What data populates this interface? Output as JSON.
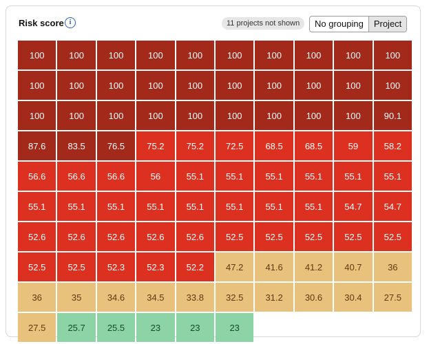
{
  "header": {
    "title": "Risk score",
    "badge": "11 projects not shown",
    "buttons": [
      "No grouping",
      "Project"
    ],
    "selected": 1
  },
  "cells": [
    {
      "value": 100,
      "color": "#a3291b",
      "text_color": "#ffffff"
    },
    {
      "value": 100,
      "color": "#a3291b",
      "text_color": "#ffffff"
    },
    {
      "value": 100,
      "color": "#a3291b",
      "text_color": "#ffffff"
    },
    {
      "value": 100,
      "color": "#a3291b",
      "text_color": "#ffffff"
    },
    {
      "value": 100,
      "color": "#a3291b",
      "text_color": "#ffffff"
    },
    {
      "value": 100,
      "color": "#a3291b",
      "text_color": "#ffffff"
    },
    {
      "value": 100,
      "color": "#a3291b",
      "text_color": "#ffffff"
    },
    {
      "value": 100,
      "color": "#a3291b",
      "text_color": "#ffffff"
    },
    {
      "value": 100,
      "color": "#a3291b",
      "text_color": "#ffffff"
    },
    {
      "value": 100,
      "color": "#a3291b",
      "text_color": "#ffffff"
    },
    {
      "value": 100,
      "color": "#a3291b",
      "text_color": "#ffffff"
    },
    {
      "value": 100,
      "color": "#a3291b",
      "text_color": "#ffffff"
    },
    {
      "value": 100,
      "color": "#a3291b",
      "text_color": "#ffffff"
    },
    {
      "value": 100,
      "color": "#a3291b",
      "text_color": "#ffffff"
    },
    {
      "value": 100,
      "color": "#a3291b",
      "text_color": "#ffffff"
    },
    {
      "value": 100,
      "color": "#a3291b",
      "text_color": "#ffffff"
    },
    {
      "value": 100,
      "color": "#a3291b",
      "text_color": "#ffffff"
    },
    {
      "value": 100,
      "color": "#a3291b",
      "text_color": "#ffffff"
    },
    {
      "value": 100,
      "color": "#a3291b",
      "text_color": "#ffffff"
    },
    {
      "value": 100,
      "color": "#a3291b",
      "text_color": "#ffffff"
    },
    {
      "value": 100,
      "color": "#a3291b",
      "text_color": "#ffffff"
    },
    {
      "value": 100,
      "color": "#a3291b",
      "text_color": "#ffffff"
    },
    {
      "value": 100,
      "color": "#a3291b",
      "text_color": "#ffffff"
    },
    {
      "value": 100,
      "color": "#a3291b",
      "text_color": "#ffffff"
    },
    {
      "value": 100,
      "color": "#a3291b",
      "text_color": "#ffffff"
    },
    {
      "value": 100,
      "color": "#a3291b",
      "text_color": "#ffffff"
    },
    {
      "value": 100,
      "color": "#a3291b",
      "text_color": "#ffffff"
    },
    {
      "value": 100,
      "color": "#a3291b",
      "text_color": "#ffffff"
    },
    {
      "value": 100,
      "color": "#a3291b",
      "text_color": "#ffffff"
    },
    {
      "value": 90.1,
      "color": "#a3291b",
      "text_color": "#ffffff"
    },
    {
      "value": 87.6,
      "color": "#a3291b",
      "text_color": "#ffffff"
    },
    {
      "value": 83.5,
      "color": "#a3291b",
      "text_color": "#ffffff"
    },
    {
      "value": 76.5,
      "color": "#a3291b",
      "text_color": "#ffffff"
    },
    {
      "value": 75.2,
      "color": "#dc3120",
      "text_color": "#ffffff"
    },
    {
      "value": 75.2,
      "color": "#dc3120",
      "text_color": "#ffffff"
    },
    {
      "value": 72.5,
      "color": "#dc3120",
      "text_color": "#ffffff"
    },
    {
      "value": 68.5,
      "color": "#dc3120",
      "text_color": "#ffffff"
    },
    {
      "value": 68.5,
      "color": "#dc3120",
      "text_color": "#ffffff"
    },
    {
      "value": 59,
      "color": "#dc3120",
      "text_color": "#ffffff"
    },
    {
      "value": 58.2,
      "color": "#dc3120",
      "text_color": "#ffffff"
    },
    {
      "value": 56.6,
      "color": "#dc3120",
      "text_color": "#ffffff"
    },
    {
      "value": 56.6,
      "color": "#dc3120",
      "text_color": "#ffffff"
    },
    {
      "value": 56.6,
      "color": "#dc3120",
      "text_color": "#ffffff"
    },
    {
      "value": 56,
      "color": "#dc3120",
      "text_color": "#ffffff"
    },
    {
      "value": 55.1,
      "color": "#dc3120",
      "text_color": "#ffffff"
    },
    {
      "value": 55.1,
      "color": "#dc3120",
      "text_color": "#ffffff"
    },
    {
      "value": 55.1,
      "color": "#dc3120",
      "text_color": "#ffffff"
    },
    {
      "value": 55.1,
      "color": "#dc3120",
      "text_color": "#ffffff"
    },
    {
      "value": 55.1,
      "color": "#dc3120",
      "text_color": "#ffffff"
    },
    {
      "value": 55.1,
      "color": "#dc3120",
      "text_color": "#ffffff"
    },
    {
      "value": 55.1,
      "color": "#dc3120",
      "text_color": "#ffffff"
    },
    {
      "value": 55.1,
      "color": "#dc3120",
      "text_color": "#ffffff"
    },
    {
      "value": 55.1,
      "color": "#dc3120",
      "text_color": "#ffffff"
    },
    {
      "value": 55.1,
      "color": "#dc3120",
      "text_color": "#ffffff"
    },
    {
      "value": 55.1,
      "color": "#dc3120",
      "text_color": "#ffffff"
    },
    {
      "value": 55.1,
      "color": "#dc3120",
      "text_color": "#ffffff"
    },
    {
      "value": 55.1,
      "color": "#dc3120",
      "text_color": "#ffffff"
    },
    {
      "value": 55.1,
      "color": "#dc3120",
      "text_color": "#ffffff"
    },
    {
      "value": 54.7,
      "color": "#dc3120",
      "text_color": "#ffffff"
    },
    {
      "value": 54.7,
      "color": "#dc3120",
      "text_color": "#ffffff"
    },
    {
      "value": 52.6,
      "color": "#dc3120",
      "text_color": "#ffffff"
    },
    {
      "value": 52.6,
      "color": "#dc3120",
      "text_color": "#ffffff"
    },
    {
      "value": 52.6,
      "color": "#dc3120",
      "text_color": "#ffffff"
    },
    {
      "value": 52.6,
      "color": "#dc3120",
      "text_color": "#ffffff"
    },
    {
      "value": 52.6,
      "color": "#dc3120",
      "text_color": "#ffffff"
    },
    {
      "value": 52.5,
      "color": "#dc3120",
      "text_color": "#ffffff"
    },
    {
      "value": 52.5,
      "color": "#dc3120",
      "text_color": "#ffffff"
    },
    {
      "value": 52.5,
      "color": "#dc3120",
      "text_color": "#ffffff"
    },
    {
      "value": 52.5,
      "color": "#dc3120",
      "text_color": "#ffffff"
    },
    {
      "value": 52.5,
      "color": "#dc3120",
      "text_color": "#ffffff"
    },
    {
      "value": 52.5,
      "color": "#dc3120",
      "text_color": "#ffffff"
    },
    {
      "value": 52.5,
      "color": "#dc3120",
      "text_color": "#ffffff"
    },
    {
      "value": 52.3,
      "color": "#dc3120",
      "text_color": "#ffffff"
    },
    {
      "value": 52.3,
      "color": "#dc3120",
      "text_color": "#ffffff"
    },
    {
      "value": 52.2,
      "color": "#dc3120",
      "text_color": "#ffffff"
    },
    {
      "value": 47.2,
      "color": "#e8c17c",
      "text_color": "#5c3b12"
    },
    {
      "value": 41.6,
      "color": "#e8c17c",
      "text_color": "#5c3b12"
    },
    {
      "value": 41.2,
      "color": "#e8c17c",
      "text_color": "#5c3b12"
    },
    {
      "value": 40.7,
      "color": "#e8c17c",
      "text_color": "#5c3b12"
    },
    {
      "value": 36,
      "color": "#e8c17c",
      "text_color": "#5c3b12"
    },
    {
      "value": 36,
      "color": "#e8c17c",
      "text_color": "#5c3b12"
    },
    {
      "value": 35,
      "color": "#e8c17c",
      "text_color": "#5c3b12"
    },
    {
      "value": 34.6,
      "color": "#e8c17c",
      "text_color": "#5c3b12"
    },
    {
      "value": 34.5,
      "color": "#e8c17c",
      "text_color": "#5c3b12"
    },
    {
      "value": 33.8,
      "color": "#e8c17c",
      "text_color": "#5c3b12"
    },
    {
      "value": 32.5,
      "color": "#e8c17c",
      "text_color": "#5c3b12"
    },
    {
      "value": 31.2,
      "color": "#e8c17c",
      "text_color": "#5c3b12"
    },
    {
      "value": 30.6,
      "color": "#e8c17c",
      "text_color": "#5c3b12"
    },
    {
      "value": 30.4,
      "color": "#e8c17c",
      "text_color": "#5c3b12"
    },
    {
      "value": 27.5,
      "color": "#e8c17c",
      "text_color": "#5c3b12"
    },
    {
      "value": 27.5,
      "color": "#e8c17c",
      "text_color": "#5c3b12"
    },
    {
      "value": 25.7,
      "color": "#8cd4a6",
      "text_color": "#134a2b"
    },
    {
      "value": 25.5,
      "color": "#8cd4a6",
      "text_color": "#134a2b"
    },
    {
      "value": 23,
      "color": "#8cd4a6",
      "text_color": "#134a2b"
    },
    {
      "value": 23,
      "color": "#8cd4a6",
      "text_color": "#134a2b"
    },
    {
      "value": 23,
      "color": "#8cd4a6",
      "text_color": "#134a2b"
    }
  ]
}
